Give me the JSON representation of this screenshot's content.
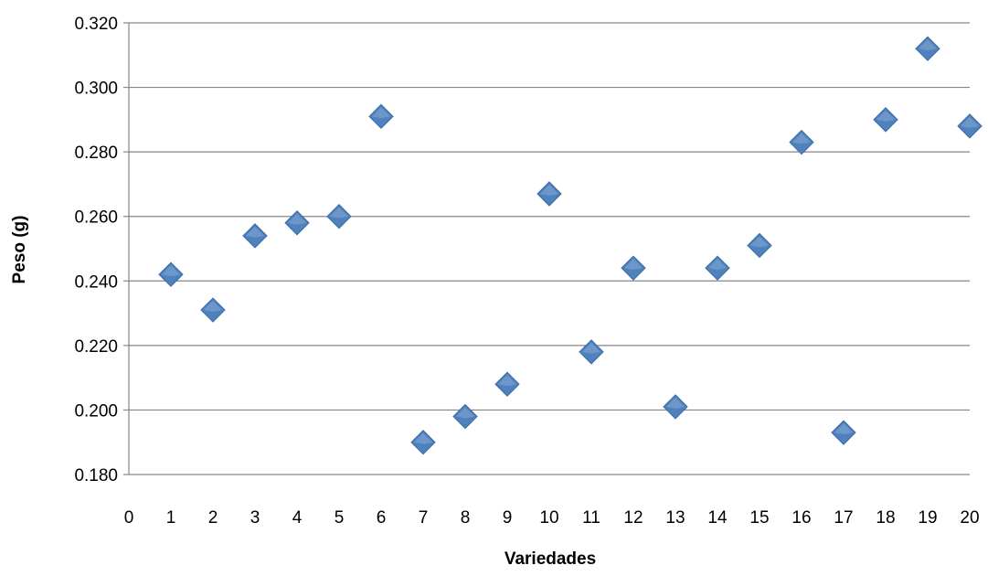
{
  "chart_data": {
    "type": "scatter",
    "title": "",
    "xlabel": "Variedades",
    "ylabel": "Peso (g)",
    "xlim": [
      0,
      20
    ],
    "ylim": [
      0.18,
      0.32
    ],
    "x_ticks": [
      "0",
      "1",
      "2",
      "3",
      "4",
      "5",
      "6",
      "7",
      "8",
      "9",
      "10",
      "11",
      "12",
      "13",
      "14",
      "15",
      "16",
      "17",
      "18",
      "19",
      "20"
    ],
    "y_ticks": [
      "0.180",
      "0.200",
      "0.220",
      "0.240",
      "0.260",
      "0.280",
      "0.300",
      "0.320"
    ],
    "grid": "horizontal",
    "legend": "none",
    "marker": "diamond",
    "marker_color": "#4F81BD",
    "series": [
      {
        "x": [
          1,
          2,
          3,
          4,
          5,
          6,
          7,
          8,
          9,
          10,
          11,
          12,
          13,
          14,
          15,
          16,
          17,
          18,
          19,
          20
        ],
        "y": [
          0.242,
          0.231,
          0.254,
          0.258,
          0.26,
          0.291,
          0.19,
          0.198,
          0.208,
          0.267,
          0.218,
          0.244,
          0.201,
          0.244,
          0.251,
          0.283,
          0.193,
          0.29,
          0.312,
          0.288
        ]
      }
    ]
  }
}
